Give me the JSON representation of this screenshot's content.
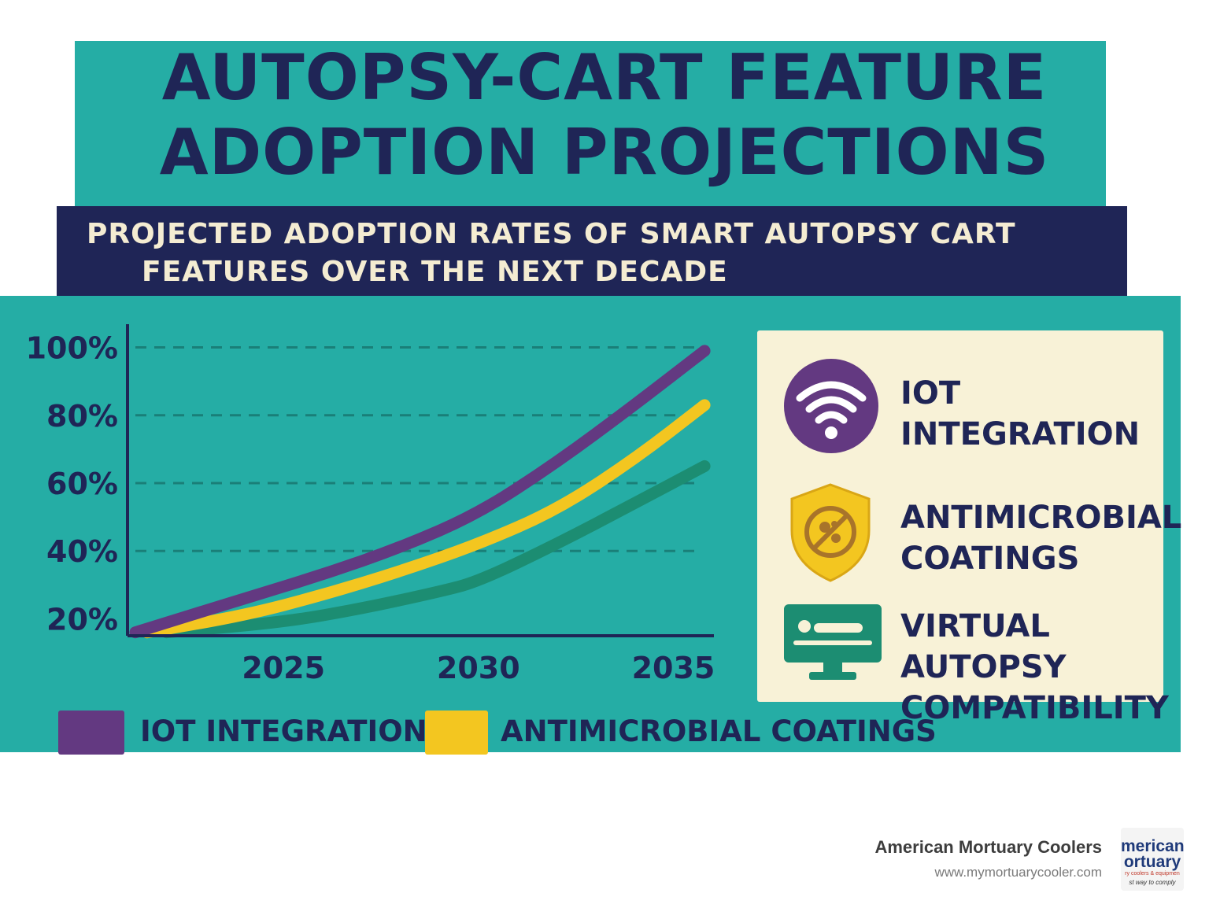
{
  "title": {
    "line1": "AUTOPSY-CART FEATURE",
    "line2": "ADOPTION PROJECTIONS"
  },
  "subtitle": {
    "line1": "PROJECTED ADOPTION RATES OF SMART AUTOPSY CART",
    "line2": "FEATURES OVER THE NEXT DECADE"
  },
  "colors": {
    "background": "#25ada5",
    "navy": "#1f2556",
    "purple": "#633981",
    "yellow": "#f3c620",
    "green": "#1c8d72",
    "card": "#f8f2d7"
  },
  "chart_data": {
    "type": "line",
    "x_ticks": [
      "2025",
      "2030",
      "2035"
    ],
    "y_ticks": [
      "100%",
      "80%",
      "60%",
      "40%",
      "20%"
    ],
    "xlim": [
      2021,
      2036
    ],
    "ylim": [
      15,
      105
    ],
    "grid": "dashed horizontal",
    "series": [
      {
        "name": "IOT INTEGRATION",
        "color": "#633981",
        "x": [
          2021.2,
          2024,
          2026,
          2028,
          2030,
          2032,
          2034,
          2035.8
        ],
        "y": [
          16,
          26,
          33,
          41,
          51,
          66,
          83,
          99
        ]
      },
      {
        "name": "ANTIMICROBIAL COATINGS",
        "color": "#f3c620",
        "x": [
          2021.5,
          2024,
          2026,
          2028,
          2030,
          2032,
          2034,
          2035.8
        ],
        "y": [
          16,
          21,
          27,
          34,
          42,
          52,
          67,
          83
        ]
      },
      {
        "name": "",
        "color": "#1c8d72",
        "x": [
          2022,
          2025,
          2027,
          2029,
          2030,
          2032,
          2034,
          2035.8
        ],
        "y": [
          16,
          19,
          23,
          28,
          31,
          42,
          54,
          65
        ]
      }
    ]
  },
  "side_legend": [
    {
      "icon": "wifi-icon",
      "line1": "IOT",
      "line2": "INTEGRATION"
    },
    {
      "icon": "antimicrobial-shield-icon",
      "line1": "ANTIMICROBIAL",
      "line2": "COATINGS"
    },
    {
      "icon": "monitor-scan-icon",
      "line1": "VIRTUAL AUTOPSY",
      "line2": "COMPATIBILITY"
    }
  ],
  "bottom_legend": [
    {
      "label": "IOT INTEGRATION",
      "color": "#633981"
    },
    {
      "label": "ANTIMICROBIAL COATINGS",
      "color": "#f3c620"
    }
  ],
  "footer": {
    "company": "American Mortuary Coolers",
    "url": "www.mymortuarycooler.com",
    "logo_line1": "merican",
    "logo_line2": "ortuary",
    "logo_line3": "ry coolers & equipmen",
    "logo_line4": "st way to comply"
  }
}
